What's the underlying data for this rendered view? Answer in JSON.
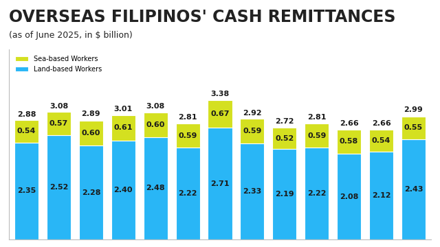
{
  "chart_data": {
    "type": "bar",
    "title": "OVERSEAS FILIPINOS' CASH REMITTANCES",
    "subtitle": "(as of June 2025, in $ billion)",
    "categories": [
      null,
      null,
      null,
      null,
      null,
      null,
      null,
      null,
      null,
      null,
      null,
      null,
      null
    ],
    "stacked": true,
    "data_labels": true,
    "tick_labels": false,
    "legend": "upper left",
    "ylim": [
      0,
      4.6
    ],
    "yticks": [],
    "series": [
      {
        "name": "Land-based Workers",
        "color": "#29b6f6",
        "values": [
          2.35,
          2.52,
          2.28,
          2.4,
          2.48,
          2.22,
          2.71,
          2.33,
          2.19,
          2.22,
          2.08,
          2.12,
          2.43
        ],
        "value_labels": [
          "2.35",
          "2.52",
          "2.28",
          "2.40",
          "2.48",
          "2.22",
          "2.71",
          "2.33",
          "2.19",
          "2.22",
          "2.08",
          "2.12",
          "2.43"
        ]
      },
      {
        "name": "Sea-based Workers",
        "color": "#d4e020",
        "values": [
          0.54,
          0.57,
          0.6,
          0.61,
          0.6,
          0.59,
          0.67,
          0.59,
          0.52,
          0.59,
          0.58,
          0.54,
          0.55
        ],
        "value_labels": [
          "0.54",
          "0.57",
          "0.60",
          "0.61",
          "0.60",
          "0.59",
          "0.67",
          "0.59",
          "0.52",
          "0.59",
          "0.58",
          "0.54",
          "0.55"
        ]
      }
    ],
    "totals": [
      2.88,
      3.08,
      2.89,
      3.01,
      3.08,
      2.81,
      3.38,
      2.92,
      2.72,
      2.81,
      2.66,
      2.66,
      2.99
    ]
  }
}
